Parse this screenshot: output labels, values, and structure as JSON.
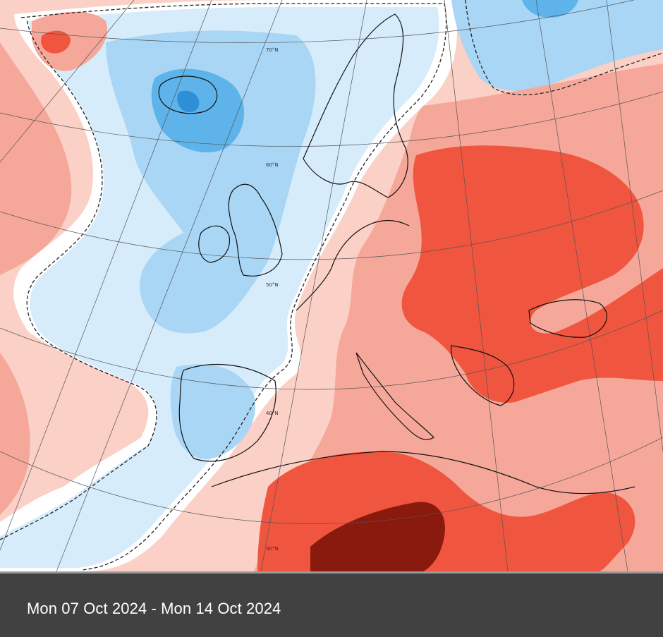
{
  "caption": {
    "date_range": "Mon 07 Oct 2024 - Mon 14 Oct 2024"
  },
  "map": {
    "type": "temperature anomaly",
    "latitude_labels": [
      "70°N",
      "60°N",
      "50°N",
      "40°N",
      "30°N"
    ],
    "colors": {
      "strong_warm": "#8b1a0e",
      "warm": "#f0553f",
      "mild_warm": "#f5a89a",
      "slight_warm": "#fbd0c6",
      "neutral": "#ffffff",
      "slight_cool": "#d6ecfb",
      "cool": "#a9d6f5",
      "cold": "#5db3ea",
      "very_cold": "#2f8fd6"
    }
  }
}
